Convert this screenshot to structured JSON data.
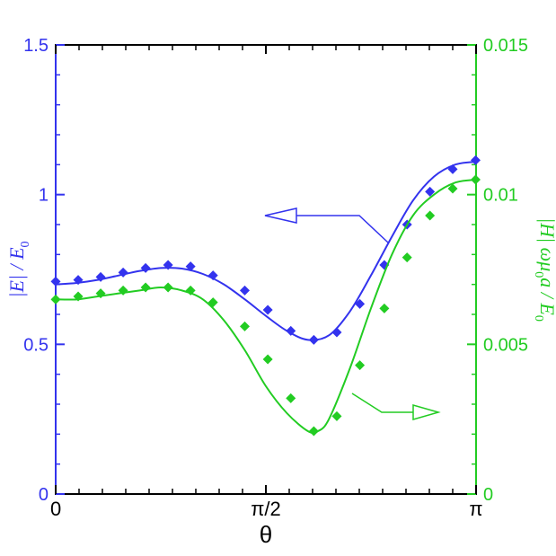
{
  "chart_data": {
    "type": "line",
    "xlabel": "θ",
    "x_ticks": [
      "0",
      "π/2",
      "π"
    ],
    "xlim": [
      0,
      3.14159
    ],
    "axes": {
      "left": {
        "label": "|E| / E",
        "label_sub": "0",
        "ylim": [
          0,
          1.5
        ],
        "ticks": [
          "1.5",
          "1",
          "0.5",
          "0"
        ],
        "color": "#3333ee"
      },
      "right": {
        "label": "|H| ωμ",
        "label_sub": "0",
        "label_tail": "a / E",
        "label_sub2": "0",
        "ylim": [
          0,
          0.015
        ],
        "ticks": [
          "0.015",
          "0.01",
          "0.005",
          "0"
        ],
        "color": "#22cc22"
      }
    },
    "series": [
      {
        "axis": "left",
        "color": "#3333ee",
        "line": {
          "x": [
            0,
            0.157,
            0.314,
            0.471,
            0.628,
            0.785,
            0.942,
            1.1,
            1.257,
            1.414,
            1.571,
            1.728,
            1.885,
            2.042,
            2.199,
            2.356,
            2.513,
            2.67,
            2.827,
            2.985,
            3.142
          ],
          "y": [
            0.7,
            0.705,
            0.715,
            0.73,
            0.745,
            0.755,
            0.753,
            0.735,
            0.7,
            0.65,
            0.595,
            0.545,
            0.515,
            0.53,
            0.61,
            0.73,
            0.86,
            0.98,
            1.06,
            1.1,
            1.11
          ]
        },
        "markers": {
          "x": [
            0,
            0.168,
            0.336,
            0.504,
            0.672,
            0.84,
            1.008,
            1.176,
            1.413,
            1.585,
            1.757,
            1.929,
            2.101,
            2.273,
            2.456,
            2.626,
            2.797,
            2.967,
            3.138
          ],
          "y": [
            0.71,
            0.715,
            0.725,
            0.74,
            0.755,
            0.765,
            0.76,
            0.73,
            0.68,
            0.615,
            0.545,
            0.515,
            0.54,
            0.635,
            0.765,
            0.9,
            1.01,
            1.085,
            1.115
          ]
        }
      },
      {
        "axis": "right",
        "color": "#22cc22",
        "line": {
          "x": [
            0,
            0.157,
            0.314,
            0.471,
            0.628,
            0.785,
            0.942,
            1.1,
            1.257,
            1.414,
            1.571,
            1.728,
            1.885,
            1.96,
            2.042,
            2.199,
            2.356,
            2.513,
            2.67,
            2.827,
            2.985,
            3.142
          ],
          "y": [
            0.0065,
            0.0065,
            0.0066,
            0.0067,
            0.0068,
            0.0069,
            0.0068,
            0.0065,
            0.0058,
            0.0048,
            0.0036,
            0.0027,
            0.0021,
            0.0021,
            0.0025,
            0.0042,
            0.0062,
            0.008,
            0.0093,
            0.01,
            0.0104,
            0.0105
          ]
        },
        "markers": {
          "x": [
            0,
            0.168,
            0.336,
            0.504,
            0.672,
            0.84,
            1.008,
            1.176,
            1.413,
            1.585,
            1.757,
            1.929,
            2.101,
            2.273,
            2.456,
            2.626,
            2.797,
            2.967,
            3.138
          ],
          "y": [
            0.0065,
            0.0066,
            0.0067,
            0.0068,
            0.0069,
            0.0069,
            0.0068,
            0.0064,
            0.0056,
            0.0045,
            0.0032,
            0.0021,
            0.0026,
            0.0043,
            0.0062,
            0.0079,
            0.0093,
            0.0102,
            0.0105
          ]
        }
      }
    ],
    "annotations": [
      {
        "type": "arrow",
        "points_to": "left",
        "series": "left",
        "color": "#3333ee"
      },
      {
        "type": "arrow",
        "points_to": "right",
        "series": "right",
        "color": "#22cc22"
      }
    ],
    "grid": false,
    "legend": "none"
  }
}
